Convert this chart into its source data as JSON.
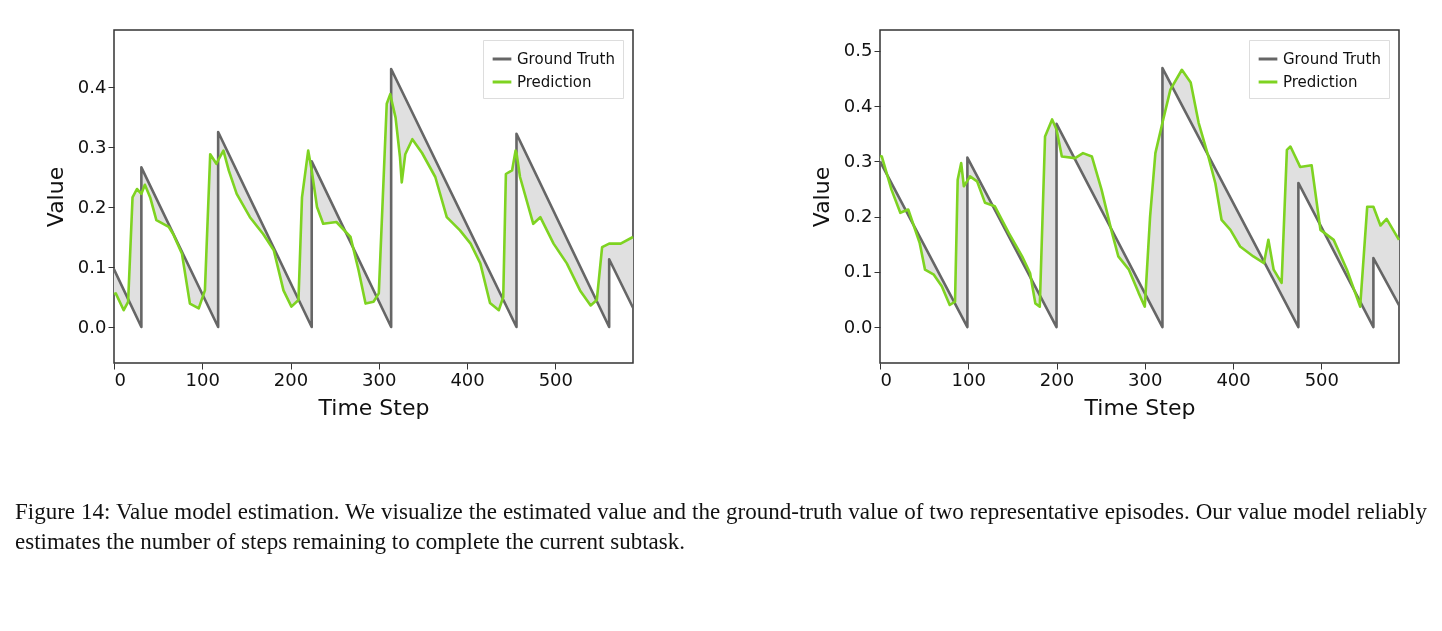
{
  "chart_data": [
    {
      "type": "line",
      "xlabel": "Time Step",
      "ylabel": "Value",
      "xlim": [
        0,
        588
      ],
      "ylim": [
        -0.06,
        0.495
      ],
      "xticks": [
        0,
        100,
        200,
        300,
        400,
        500
      ],
      "yticks": [
        {
          "value": 0,
          "label": "0.0"
        },
        {
          "value": 0.1,
          "label": "0.1"
        },
        {
          "value": 0.2,
          "label": "0.2"
        },
        {
          "value": 0.3,
          "label": "0.3"
        },
        {
          "value": 0.4,
          "label": "0.4"
        }
      ],
      "legend": "top right",
      "annotations": [
        "Figure 14: Value model estimation. We visualize the estimated value and the ground-truth value of two representative episodes. Our value model reliably estimates the number of steps remaining to complete the current subtask."
      ],
      "series": [
        {
          "name": "Ground Truth",
          "color": "#666666",
          "x": [
            0,
            31,
            31,
            118,
            118,
            224,
            224,
            314,
            314,
            456,
            456,
            561,
            561,
            588
          ],
          "values": [
            0.096,
            0,
            0.266,
            0,
            0.325,
            0,
            0.276,
            0,
            0.43,
            0,
            0.322,
            0,
            0.113,
            0.032
          ]
        },
        {
          "name": "Prediction",
          "color": "#7ed321",
          "x": [
            0,
            2,
            11,
            16,
            21,
            26,
            31,
            31,
            35,
            41,
            48,
            62,
            67,
            77,
            86,
            96,
            103,
            109,
            116,
            118,
            118,
            124,
            130,
            139,
            154,
            169,
            181,
            192,
            201,
            209,
            213,
            220,
            224,
            224,
            230,
            237,
            252,
            268,
            277,
            285,
            294,
            300,
            309,
            313,
            314,
            314,
            319,
            324,
            326,
            330,
            338,
            349,
            364,
            377,
            392,
            404,
            415,
            426,
            436,
            441,
            444,
            451,
            455,
            456,
            456,
            460,
            475,
            483,
            498,
            513,
            528,
            540,
            547,
            553,
            561,
            561,
            562,
            574,
            588
          ],
          "values": [
            0.055,
            0.056,
            0.028,
            0.042,
            0.216,
            0.23,
            0.222,
            0.222,
            0.237,
            0.216,
            0.178,
            0.167,
            0.155,
            0.122,
            0.039,
            0.031,
            0.061,
            0.288,
            0.272,
            0.278,
            0.278,
            0.294,
            0.261,
            0.222,
            0.183,
            0.155,
            0.128,
            0.061,
            0.034,
            0.045,
            0.216,
            0.294,
            0.261,
            0.261,
            0.2,
            0.172,
            0.175,
            0.15,
            0.095,
            0.039,
            0.042,
            0.056,
            0.372,
            0.388,
            0.381,
            0.381,
            0.349,
            0.283,
            0.241,
            0.288,
            0.313,
            0.29,
            0.25,
            0.183,
            0.161,
            0.139,
            0.106,
            0.04,
            0.028,
            0.05,
            0.255,
            0.261,
            0.294,
            0.29,
            0.29,
            0.25,
            0.172,
            0.183,
            0.139,
            0.106,
            0.061,
            0.036,
            0.045,
            0.133,
            0.139,
            0.139,
            0.139,
            0.139,
            0.15
          ],
          "lower": [
            0.096,
            0.09,
            0.062,
            0.046,
            0.031,
            0.015,
            0,
            0.266,
            0.254,
            0.235,
            0.214,
            0.171,
            0.156,
            0.125,
            0.098,
            0.067,
            0.046,
            0.028,
            0.006,
            0,
            0.325,
            0.307,
            0.288,
            0.261,
            0.215,
            0.169,
            0.132,
            0.098,
            0.071,
            0.046,
            0.034,
            0.012,
            0,
            0.276,
            0.258,
            0.236,
            0.19,
            0.141,
            0.113,
            0.089,
            0.061,
            0.043,
            0.015,
            0.003,
            0,
            0.43,
            0.415,
            0.4,
            0.394,
            0.382,
            0.357,
            0.324,
            0.279,
            0.239,
            0.194,
            0.157,
            0.124,
            0.091,
            0.061,
            0.045,
            0.036,
            0.015,
            0.003,
            0,
            0.322,
            0.31,
            0.264,
            0.239,
            0.193,
            0.147,
            0.101,
            0.064,
            0.043,
            0.025,
            0,
            0.113,
            0.11,
            0.074,
            0.032
          ],
          "upper": [
            0.055,
            0.056,
            0.028,
            0.042,
            0.216,
            0.23,
            0.222,
            0.222,
            0.237,
            0.216,
            0.178,
            0.167,
            0.155,
            0.122,
            0.039,
            0.031,
            0.061,
            0.288,
            0.272,
            0.278,
            0.278,
            0.294,
            0.261,
            0.222,
            0.183,
            0.155,
            0.128,
            0.061,
            0.034,
            0.045,
            0.216,
            0.294,
            0.261,
            0.261,
            0.2,
            0.172,
            0.175,
            0.15,
            0.095,
            0.039,
            0.042,
            0.056,
            0.372,
            0.388,
            0.381,
            0.381,
            0.349,
            0.283,
            0.241,
            0.288,
            0.313,
            0.29,
            0.25,
            0.183,
            0.161,
            0.139,
            0.106,
            0.04,
            0.028,
            0.05,
            0.255,
            0.261,
            0.294,
            0.29,
            0.29,
            0.25,
            0.172,
            0.183,
            0.139,
            0.106,
            0.061,
            0.036,
            0.045,
            0.133,
            0.139,
            0.139,
            0.139,
            0.139,
            0.15
          ]
        }
      ]
    },
    {
      "type": "line",
      "xlabel": "Time Step",
      "ylabel": "Value",
      "xlim": [
        0,
        588
      ],
      "ylim": [
        -0.065,
        0.538
      ],
      "xticks": [
        0,
        100,
        200,
        300,
        400,
        500
      ],
      "yticks": [
        {
          "value": 0,
          "label": "0.0"
        },
        {
          "value": 0.1,
          "label": "0.1"
        },
        {
          "value": 0.2,
          "label": "0.2"
        },
        {
          "value": 0.3,
          "label": "0.3"
        },
        {
          "value": 0.4,
          "label": "0.4"
        },
        {
          "value": 0.5,
          "label": "0.5"
        }
      ],
      "legend": "top right",
      "series": [
        {
          "name": "Ground Truth",
          "color": "#666666",
          "x": [
            0,
            99,
            99,
            200,
            200,
            320,
            320,
            474,
            474,
            559,
            559,
            588
          ],
          "values": [
            0.3,
            0,
            0.307,
            0,
            0.368,
            0,
            0.469,
            0,
            0.261,
            0,
            0.125,
            0.04
          ]
        },
        {
          "name": "Prediction",
          "color": "#7ed321",
          "x": [
            0,
            2,
            13,
            23,
            32,
            45,
            51,
            61,
            70,
            79,
            85,
            88,
            92,
            95,
            99,
            99,
            102,
            110,
            119,
            130,
            146,
            161,
            170,
            176,
            181,
            187,
            195,
            200,
            200,
            206,
            221,
            230,
            240,
            251,
            262,
            270,
            282,
            293,
            300,
            306,
            312,
            319,
            320,
            320,
            329,
            342,
            352,
            361,
            372,
            380,
            387,
            397,
            408,
            423,
            435,
            440,
            446,
            455,
            461,
            465,
            474,
            474,
            476,
            489,
            499,
            514,
            529,
            544,
            552,
            559,
            559,
            567,
            574,
            588
          ],
          "values": [
            0.31,
            0.309,
            0.249,
            0.207,
            0.213,
            0.152,
            0.104,
            0.095,
            0.074,
            0.04,
            0.046,
            0.267,
            0.297,
            0.255,
            0.265,
            0.265,
            0.273,
            0.264,
            0.225,
            0.219,
            0.17,
            0.128,
            0.098,
            0.043,
            0.037,
            0.345,
            0.376,
            0.358,
            0.358,
            0.309,
            0.306,
            0.315,
            0.309,
            0.249,
            0.176,
            0.128,
            0.104,
            0.062,
            0.037,
            0.2,
            0.315,
            0.363,
            0.37,
            0.37,
            0.43,
            0.466,
            0.443,
            0.37,
            0.309,
            0.26,
            0.194,
            0.176,
            0.146,
            0.128,
            0.116,
            0.158,
            0.104,
            0.08,
            0.321,
            0.327,
            0.297,
            0.297,
            0.29,
            0.293,
            0.176,
            0.158,
            0.104,
            0.037,
            0.218,
            0.218,
            0.218,
            0.184,
            0.196,
            0.158
          ],
          "lower": [
            0.3,
            0.294,
            0.261,
            0.23,
            0.203,
            0.164,
            0.145,
            0.115,
            0.088,
            0.061,
            0.042,
            0.033,
            0.021,
            0.012,
            0,
            0.307,
            0.298,
            0.274,
            0.246,
            0.213,
            0.164,
            0.119,
            0.091,
            0.073,
            0.058,
            0.04,
            0.015,
            0,
            0.368,
            0.35,
            0.304,
            0.276,
            0.245,
            0.212,
            0.178,
            0.153,
            0.117,
            0.083,
            0.061,
            0.043,
            0.025,
            0.003,
            0,
            0.469,
            0.442,
            0.402,
            0.372,
            0.344,
            0.311,
            0.286,
            0.265,
            0.235,
            0.201,
            0.155,
            0.119,
            0.104,
            0.085,
            0.058,
            0.04,
            0.027,
            0,
            0.261,
            0.255,
            0.215,
            0.184,
            0.138,
            0.092,
            0.046,
            0.021,
            0,
            0.125,
            0.102,
            0.081,
            0.04
          ],
          "upper": [
            0.31,
            0.309,
            0.249,
            0.207,
            0.213,
            0.152,
            0.104,
            0.095,
            0.074,
            0.04,
            0.046,
            0.267,
            0.297,
            0.255,
            0.265,
            0.265,
            0.273,
            0.264,
            0.225,
            0.219,
            0.17,
            0.128,
            0.098,
            0.043,
            0.037,
            0.345,
            0.376,
            0.358,
            0.358,
            0.309,
            0.306,
            0.315,
            0.309,
            0.249,
            0.176,
            0.128,
            0.104,
            0.062,
            0.037,
            0.2,
            0.315,
            0.363,
            0.37,
            0.37,
            0.43,
            0.466,
            0.443,
            0.37,
            0.309,
            0.26,
            0.194,
            0.176,
            0.146,
            0.128,
            0.116,
            0.158,
            0.104,
            0.08,
            0.321,
            0.327,
            0.297,
            0.297,
            0.29,
            0.293,
            0.176,
            0.158,
            0.104,
            0.037,
            0.218,
            0.218,
            0.218,
            0.184,
            0.196,
            0.158
          ]
        }
      ]
    }
  ]
}
